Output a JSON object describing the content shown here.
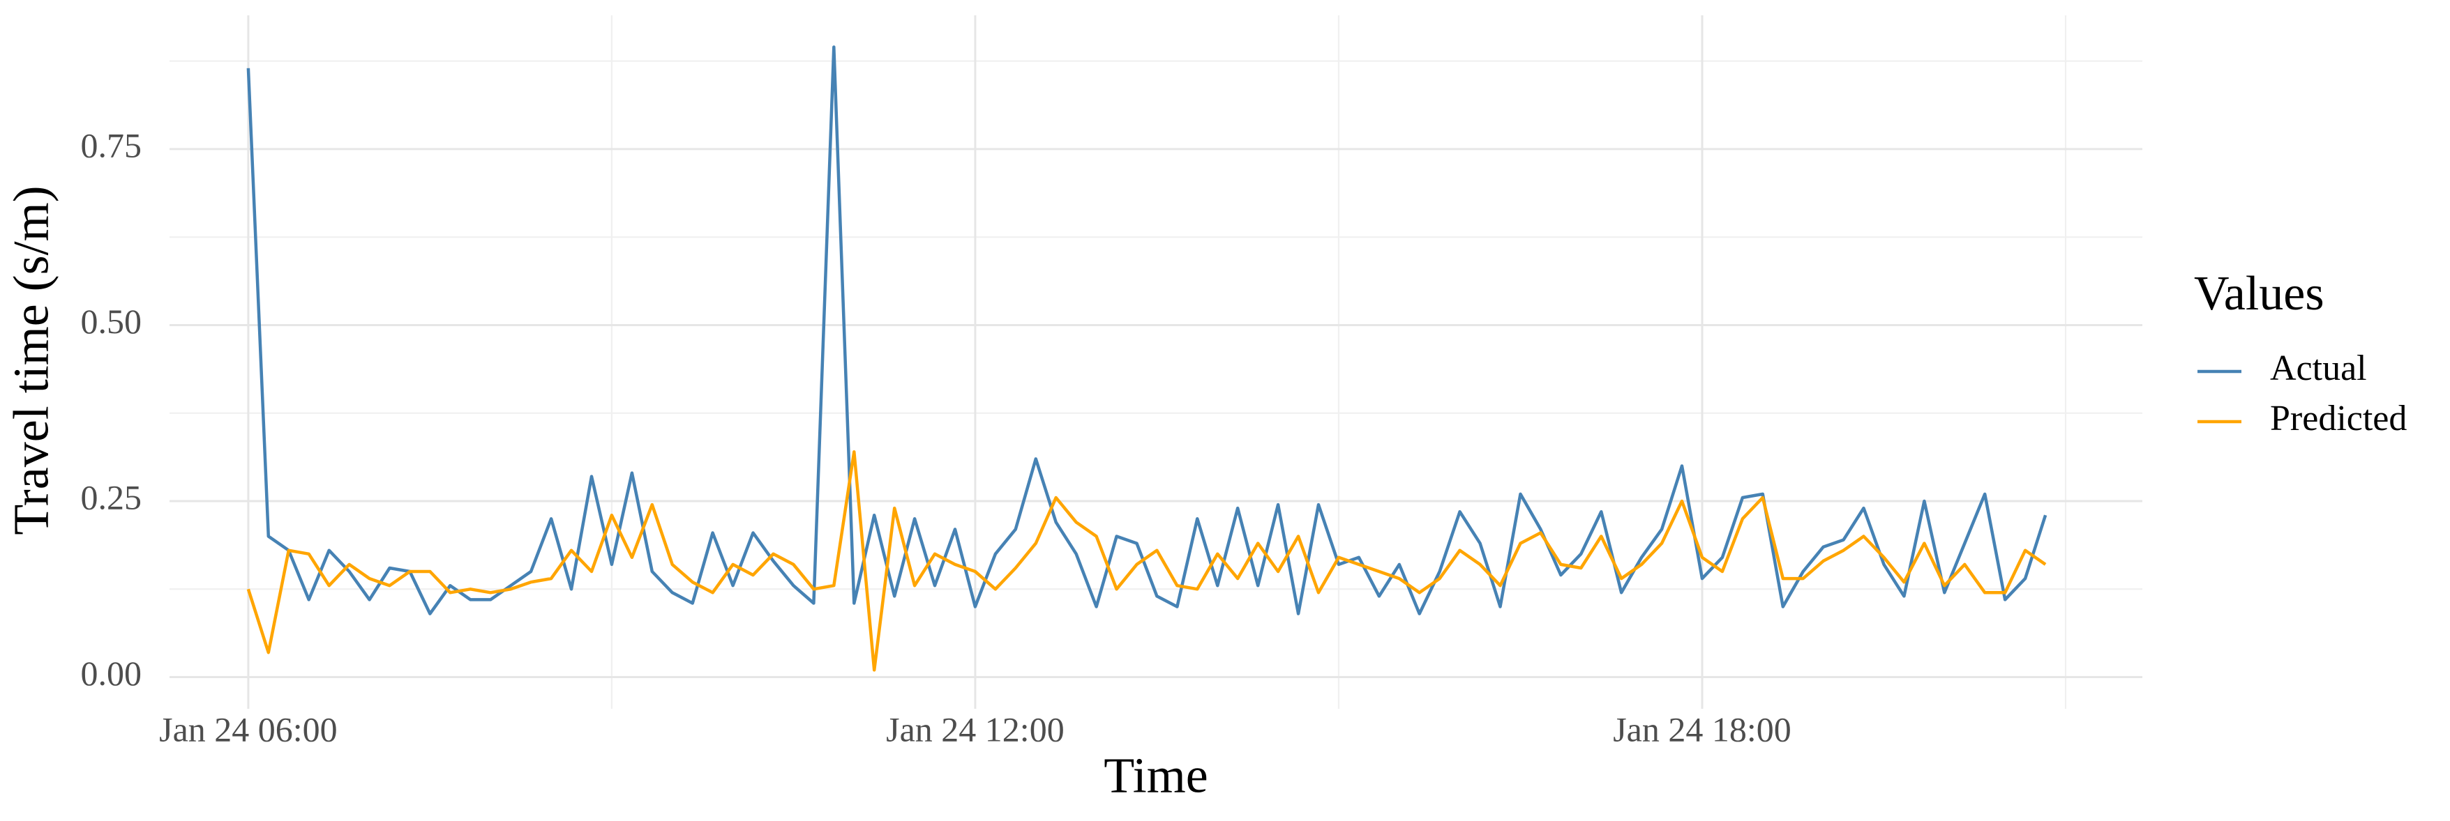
{
  "chart_data": {
    "type": "line",
    "x_label": "Time",
    "y_label": "Travel time (s/m)",
    "legend_title": "Values",
    "x": [
      "Jan 24 06:00",
      "Jan 24 06:10",
      "Jan 24 06:20",
      "Jan 24 06:30",
      "Jan 24 06:40",
      "Jan 24 06:50",
      "Jan 24 07:00",
      "Jan 24 07:10",
      "Jan 24 07:20",
      "Jan 24 07:30",
      "Jan 24 07:40",
      "Jan 24 07:50",
      "Jan 24 08:00",
      "Jan 24 08:10",
      "Jan 24 08:20",
      "Jan 24 08:30",
      "Jan 24 08:40",
      "Jan 24 08:50",
      "Jan 24 09:00",
      "Jan 24 09:10",
      "Jan 24 09:20",
      "Jan 24 09:30",
      "Jan 24 09:40",
      "Jan 24 09:50",
      "Jan 24 10:00",
      "Jan 24 10:10",
      "Jan 24 10:20",
      "Jan 24 10:30",
      "Jan 24 10:40",
      "Jan 24 10:50",
      "Jan 24 11:00",
      "Jan 24 11:10",
      "Jan 24 11:20",
      "Jan 24 11:30",
      "Jan 24 11:40",
      "Jan 24 11:50",
      "Jan 24 12:00",
      "Jan 24 12:10",
      "Jan 24 12:20",
      "Jan 24 12:30",
      "Jan 24 12:40",
      "Jan 24 12:50",
      "Jan 24 13:00",
      "Jan 24 13:10",
      "Jan 24 13:20",
      "Jan 24 13:30",
      "Jan 24 13:40",
      "Jan 24 13:50",
      "Jan 24 14:00",
      "Jan 24 14:10",
      "Jan 24 14:20",
      "Jan 24 14:30",
      "Jan 24 14:40",
      "Jan 24 14:50",
      "Jan 24 15:00",
      "Jan 24 15:10",
      "Jan 24 15:20",
      "Jan 24 15:30",
      "Jan 24 15:40",
      "Jan 24 15:50",
      "Jan 24 16:00",
      "Jan 24 16:10",
      "Jan 24 16:20",
      "Jan 24 16:30",
      "Jan 24 16:40",
      "Jan 24 16:50",
      "Jan 24 17:00",
      "Jan 24 17:10",
      "Jan 24 17:20",
      "Jan 24 17:30",
      "Jan 24 17:40",
      "Jan 24 17:50",
      "Jan 24 18:00",
      "Jan 24 18:10",
      "Jan 24 18:20",
      "Jan 24 18:30",
      "Jan 24 18:40",
      "Jan 24 18:50",
      "Jan 24 19:00",
      "Jan 24 19:10",
      "Jan 24 19:20",
      "Jan 24 19:30",
      "Jan 24 19:40",
      "Jan 24 19:50",
      "Jan 24 20:00",
      "Jan 24 20:10",
      "Jan 24 20:20",
      "Jan 24 20:30",
      "Jan 24 20:40",
      "Jan 24 20:50"
    ],
    "series": [
      {
        "name": "Actual",
        "color": "#4682b4",
        "values": [
          0.865,
          0.2,
          0.18,
          0.11,
          0.18,
          0.15,
          0.11,
          0.155,
          0.15,
          0.09,
          0.13,
          0.11,
          0.11,
          0.13,
          0.15,
          0.225,
          0.125,
          0.285,
          0.16,
          0.29,
          0.15,
          0.12,
          0.105,
          0.205,
          0.13,
          0.205,
          0.165,
          0.13,
          0.105,
          0.895,
          0.105,
          0.23,
          0.115,
          0.225,
          0.13,
          0.21,
          0.1,
          0.175,
          0.21,
          0.31,
          0.22,
          0.175,
          0.1,
          0.2,
          0.19,
          0.115,
          0.1,
          0.225,
          0.13,
          0.24,
          0.13,
          0.245,
          0.09,
          0.245,
          0.16,
          0.17,
          0.115,
          0.16,
          0.09,
          0.15,
          0.235,
          0.19,
          0.1,
          0.26,
          0.21,
          0.145,
          0.175,
          0.235,
          0.12,
          0.17,
          0.21,
          0.3,
          0.14,
          0.17,
          0.255,
          0.26,
          0.1,
          0.15,
          0.185,
          0.195,
          0.24,
          0.16,
          0.115,
          0.25,
          0.12,
          0.19,
          0.26,
          0.11,
          0.14,
          0.23
        ]
      },
      {
        "name": "Predicted",
        "color": "#ffa500",
        "values": [
          0.125,
          0.035,
          0.18,
          0.175,
          0.13,
          0.16,
          0.14,
          0.13,
          0.15,
          0.15,
          0.12,
          0.125,
          0.12,
          0.125,
          0.135,
          0.14,
          0.18,
          0.15,
          0.23,
          0.17,
          0.245,
          0.16,
          0.135,
          0.12,
          0.16,
          0.145,
          0.175,
          0.16,
          0.125,
          0.13,
          0.32,
          0.01,
          0.24,
          0.13,
          0.175,
          0.16,
          0.15,
          0.125,
          0.155,
          0.19,
          0.255,
          0.22,
          0.2,
          0.125,
          0.16,
          0.18,
          0.13,
          0.125,
          0.175,
          0.14,
          0.19,
          0.15,
          0.2,
          0.12,
          0.17,
          0.16,
          0.15,
          0.14,
          0.12,
          0.14,
          0.18,
          0.16,
          0.13,
          0.19,
          0.205,
          0.16,
          0.155,
          0.2,
          0.14,
          0.16,
          0.19,
          0.25,
          0.17,
          0.15,
          0.225,
          0.255,
          0.14,
          0.14,
          0.165,
          0.18,
          0.2,
          0.17,
          0.135,
          0.19,
          0.13,
          0.16,
          0.12,
          0.12,
          0.18,
          0.16
        ]
      }
    ],
    "xlim": [
      "Jan 24 05:21",
      "Jan 24 21:38"
    ],
    "xticks": [
      "Jan 24 06:00",
      "Jan 24 12:00",
      "Jan 24 18:00"
    ],
    "ylim": [
      -0.045,
      0.94
    ],
    "yticks": [
      {
        "value": 0,
        "label": "0.00"
      },
      {
        "value": 0.25,
        "label": "0.25"
      },
      {
        "value": 0.5,
        "label": "0.50"
      },
      {
        "value": 0.75,
        "label": "0.75"
      }
    ],
    "grid": true,
    "legend": "right"
  }
}
